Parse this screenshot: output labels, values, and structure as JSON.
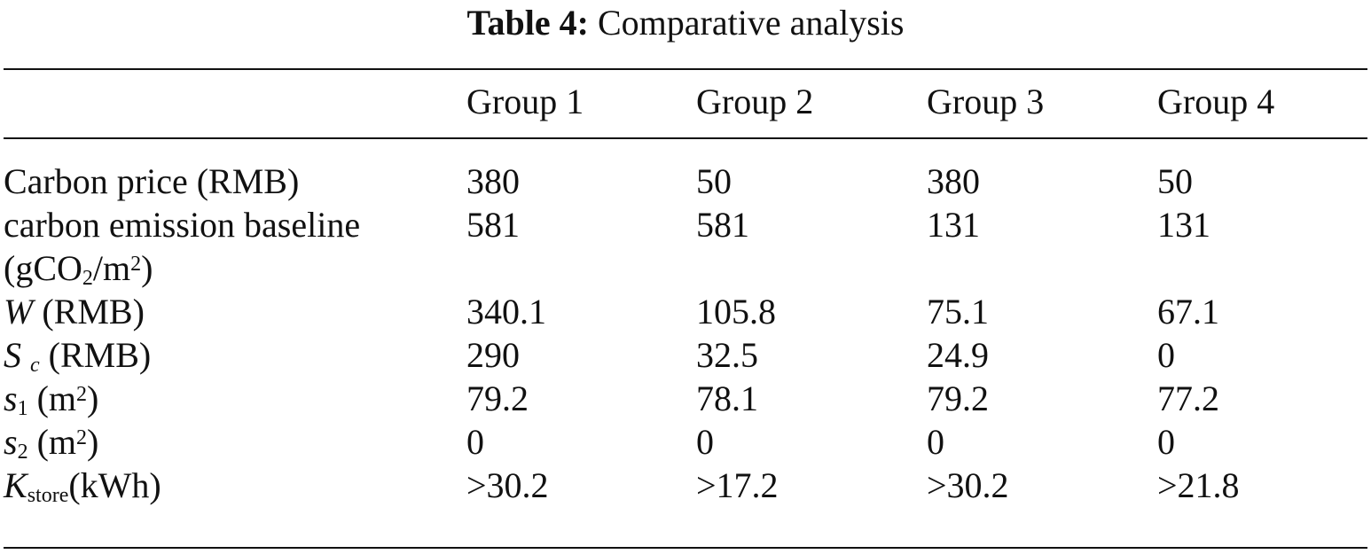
{
  "caption": {
    "label": "Table 4:",
    "text": "Comparative analysis"
  },
  "columns": [
    "",
    "Group 1",
    "Group 2",
    "Group 3",
    "Group 4"
  ],
  "rows": [
    {
      "label": "Carbon price (RMB)",
      "values": [
        "380",
        "50",
        "380",
        "50"
      ]
    },
    {
      "label_line1": "carbon emission baseline",
      "label_line2": "(gCO2/m2)",
      "label_parts": {
        "open": "(gCO",
        "sub": "2",
        "mid": "/m",
        "sup": "2",
        "close": ")"
      },
      "values": [
        "581",
        "581",
        "131",
        "131"
      ]
    },
    {
      "label_symbol": "W",
      "label_unit": "(RMB)",
      "values": [
        "340.1",
        "105.8",
        "75.1",
        "67.1"
      ]
    },
    {
      "label_symbol": "S",
      "label_sub": "c",
      "label_unit": "(RMB)",
      "values": [
        "290",
        "32.5",
        "24.9",
        "0"
      ]
    },
    {
      "label_symbol": "s",
      "label_sub": "1",
      "label_unit_open": "(m",
      "label_sup": "2",
      "label_unit_close": ")",
      "values": [
        "79.2",
        "78.1",
        "79.2",
        "77.2"
      ]
    },
    {
      "label_symbol": "s",
      "label_sub": "2",
      "label_unit_open": "(m",
      "label_sup": "2",
      "label_unit_close": ")",
      "values": [
        "0",
        "0",
        "0",
        "0"
      ]
    },
    {
      "label_symbol": "K",
      "label_sub": "store",
      "label_unit": "(kWh)",
      "values": [
        ">30.2",
        ">17.2",
        ">30.2",
        ">21.8"
      ]
    }
  ]
}
